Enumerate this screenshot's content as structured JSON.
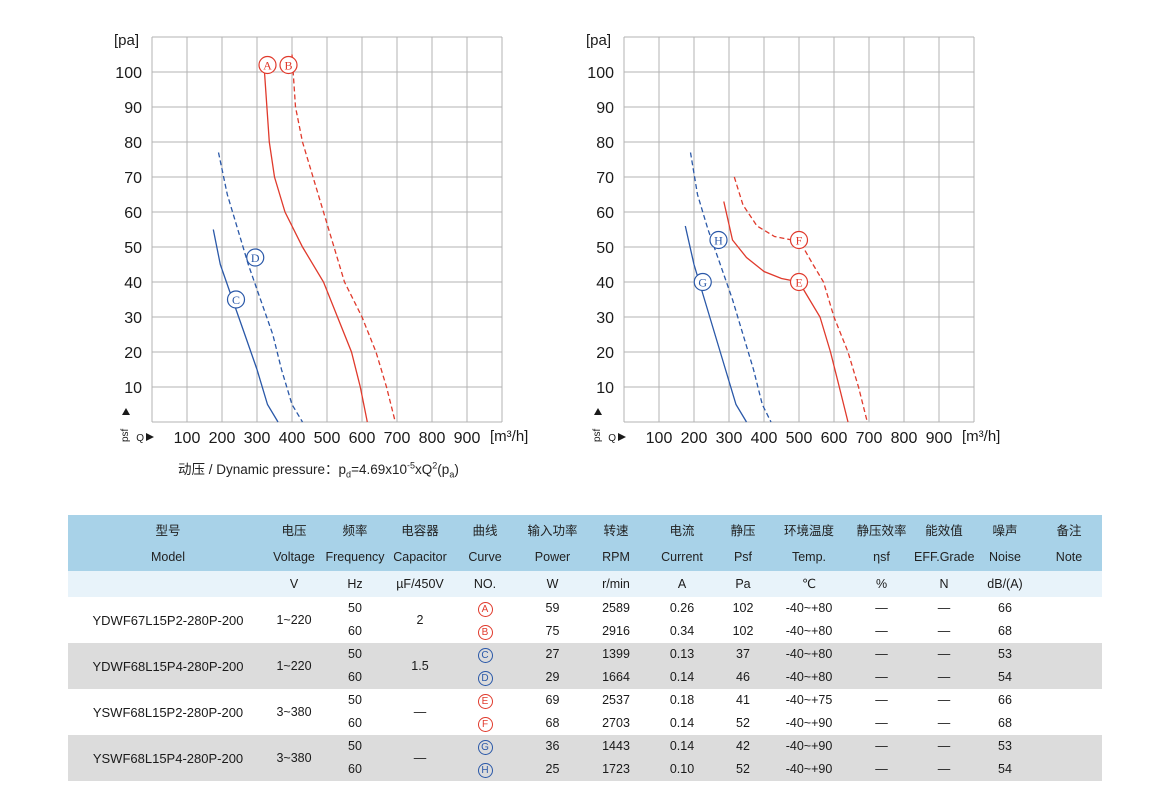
{
  "chart_data": [
    {
      "type": "line",
      "x_ticks": [
        "100",
        "200",
        "300",
        "400",
        "500",
        "600",
        "700",
        "800",
        "900"
      ],
      "y_ticks": [
        "10",
        "20",
        "30",
        "40",
        "50",
        "60",
        "70",
        "80",
        "90",
        "100"
      ],
      "xlabel": "[m³/h]",
      "ylabel": "[pa]",
      "xlim": [
        0,
        1000
      ],
      "ylim": [
        0,
        110
      ],
      "grid": true,
      "series": [
        {
          "name": "A",
          "color": "#e03a2c",
          "dash": false,
          "points": [
            [
              320,
              102
            ],
            [
              335,
              80
            ],
            [
              350,
              70
            ],
            [
              380,
              60
            ],
            [
              430,
              50
            ],
            [
              490,
              40
            ],
            [
              530,
              30
            ],
            [
              570,
              20
            ],
            [
              595,
              10
            ],
            [
              615,
              0
            ]
          ]
        },
        {
          "name": "B",
          "color": "#e03a2c",
          "dash": true,
          "points": [
            [
              400,
              105
            ],
            [
              410,
              90
            ],
            [
              430,
              80
            ],
            [
              460,
              70
            ],
            [
              490,
              60
            ],
            [
              520,
              50
            ],
            [
              550,
              40
            ],
            [
              600,
              30
            ],
            [
              640,
              20
            ],
            [
              670,
              10
            ],
            [
              695,
              0
            ]
          ]
        },
        {
          "name": "C",
          "color": "#2a58a8",
          "dash": false,
          "points": [
            [
              175,
              55
            ],
            [
              195,
              45
            ],
            [
              230,
              35
            ],
            [
              265,
              25
            ],
            [
              300,
              15
            ],
            [
              330,
              5
            ],
            [
              360,
              0
            ]
          ]
        },
        {
          "name": "D",
          "color": "#2a58a8",
          "dash": true,
          "points": [
            [
              190,
              77
            ],
            [
              215,
              65
            ],
            [
              245,
              55
            ],
            [
              275,
              45
            ],
            [
              310,
              35
            ],
            [
              345,
              25
            ],
            [
              370,
              15
            ],
            [
              400,
              5
            ],
            [
              430,
              0
            ]
          ]
        }
      ],
      "labels": [
        {
          "name": "A",
          "x": 330,
          "y": 102
        },
        {
          "name": "B",
          "x": 390,
          "y": 102
        },
        {
          "name": "C",
          "x": 240,
          "y": 35
        },
        {
          "name": "D",
          "x": 295,
          "y": 47
        }
      ]
    },
    {
      "type": "line",
      "x_ticks": [
        "100",
        "200",
        "300",
        "400",
        "500",
        "600",
        "700",
        "800",
        "900"
      ],
      "y_ticks": [
        "10",
        "20",
        "30",
        "40",
        "50",
        "60",
        "70",
        "80",
        "90",
        "100"
      ],
      "xlabel": "[m³/h]",
      "ylabel": "[pa]",
      "xlim": [
        0,
        1000
      ],
      "ylim": [
        0,
        110
      ],
      "grid": true,
      "series": [
        {
          "name": "E",
          "color": "#e03a2c",
          "dash": false,
          "points": [
            [
              285,
              63
            ],
            [
              310,
              52
            ],
            [
              350,
              47
            ],
            [
              400,
              43
            ],
            [
              450,
              41
            ],
            [
              500,
              40
            ],
            [
              560,
              30
            ],
            [
              590,
              20
            ],
            [
              615,
              10
            ],
            [
              640,
              0
            ]
          ]
        },
        {
          "name": "F",
          "color": "#e03a2c",
          "dash": true,
          "points": [
            [
              315,
              70
            ],
            [
              340,
              62
            ],
            [
              380,
              56
            ],
            [
              430,
              53
            ],
            [
              480,
              52
            ],
            [
              500,
              52
            ],
            [
              540,
              45
            ],
            [
              570,
              40
            ],
            [
              600,
              30
            ],
            [
              640,
              20
            ],
            [
              670,
              10
            ],
            [
              695,
              0
            ]
          ]
        },
        {
          "name": "G",
          "color": "#2a58a8",
          "dash": false,
          "points": [
            [
              175,
              56
            ],
            [
              200,
              45
            ],
            [
              230,
              35
            ],
            [
              260,
              25
            ],
            [
              290,
              15
            ],
            [
              320,
              5
            ],
            [
              350,
              0
            ]
          ]
        },
        {
          "name": "H",
          "color": "#2a58a8",
          "dash": true,
          "points": [
            [
              190,
              77
            ],
            [
              210,
              65
            ],
            [
              240,
              55
            ],
            [
              275,
              45
            ],
            [
              310,
              35
            ],
            [
              340,
              25
            ],
            [
              370,
              15
            ],
            [
              395,
              5
            ],
            [
              420,
              0
            ]
          ]
        }
      ],
      "labels": [
        {
          "name": "E",
          "x": 500,
          "y": 40
        },
        {
          "name": "F",
          "x": 500,
          "y": 52
        },
        {
          "name": "G",
          "x": 225,
          "y": 40
        },
        {
          "name": "H",
          "x": 270,
          "y": 52
        }
      ]
    }
  ],
  "charts": {
    "y_unit": "[pa]",
    "psf_label": "psf",
    "q_label": "Q",
    "x_unit": "[m³/h]"
  },
  "formula": {
    "prefix": "动压 / Dynamic pressure：p",
    "sub_d": "d",
    "eq": "=4.69x10",
    "sup": "-5",
    "mid": "xQ",
    "sup2": "2",
    "open": "(p",
    "sub_a": "a",
    "close": ")"
  },
  "table": {
    "headers_cn": [
      "型号",
      "电压",
      "频率",
      "电容器",
      "曲线",
      "输入功率",
      "转速",
      "电流",
      "静压",
      "环境温度",
      "静压效率",
      "能效值",
      "噪声",
      "备注"
    ],
    "headers_en": [
      "Model",
      "Voltage",
      "Frequency",
      "Capacitor",
      "Curve",
      "Power",
      "RPM",
      "Current",
      "Psf",
      "Temp.",
      "ηsf",
      "EFF.Grade",
      "Noise",
      "Note"
    ],
    "units": [
      "",
      "V",
      "Hz",
      "µF/450V",
      "NO.",
      "W",
      "r/min",
      "A",
      "Pa",
      "℃",
      "%",
      "N",
      "dB/(A)",
      ""
    ],
    "groups": [
      {
        "model": "YDWF67L15P2-280P-200",
        "voltage": "1~220",
        "capacitor": "2",
        "rows": [
          {
            "hz": "50",
            "curve": "A",
            "curve_color": "red",
            "power": "59",
            "rpm": "2589",
            "current": "0.26",
            "psf": "102",
            "temp": "-40~+80",
            "eff": "—",
            "grade": "—",
            "noise": "66"
          },
          {
            "hz": "60",
            "curve": "B",
            "curve_color": "red",
            "power": "75",
            "rpm": "2916",
            "current": "0.34",
            "psf": "102",
            "temp": "-40~+80",
            "eff": "—",
            "grade": "—",
            "noise": "68"
          }
        ]
      },
      {
        "model": "YDWF68L15P4-280P-200",
        "voltage": "1~220",
        "capacitor": "1.5",
        "rows": [
          {
            "hz": "50",
            "curve": "C",
            "curve_color": "blue",
            "power": "27",
            "rpm": "1399",
            "current": "0.13",
            "psf": "37",
            "temp": "-40~+80",
            "eff": "—",
            "grade": "—",
            "noise": "53"
          },
          {
            "hz": "60",
            "curve": "D",
            "curve_color": "blue",
            "power": "29",
            "rpm": "1664",
            "current": "0.14",
            "psf": "46",
            "temp": "-40~+80",
            "eff": "—",
            "grade": "—",
            "noise": "54"
          }
        ]
      },
      {
        "model": "YSWF68L15P2-280P-200",
        "voltage": "3~380",
        "capacitor": "—",
        "rows": [
          {
            "hz": "50",
            "curve": "E",
            "curve_color": "red",
            "power": "69",
            "rpm": "2537",
            "current": "0.18",
            "psf": "41",
            "temp": "-40~+75",
            "eff": "—",
            "grade": "—",
            "noise": "66"
          },
          {
            "hz": "60",
            "curve": "F",
            "curve_color": "red",
            "power": "68",
            "rpm": "2703",
            "current": "0.14",
            "psf": "52",
            "temp": "-40~+90",
            "eff": "—",
            "grade": "—",
            "noise": "68"
          }
        ]
      },
      {
        "model": "YSWF68L15P4-280P-200",
        "voltage": "3~380",
        "capacitor": "—",
        "rows": [
          {
            "hz": "50",
            "curve": "G",
            "curve_color": "blue",
            "power": "36",
            "rpm": "1443",
            "current": "0.14",
            "psf": "42",
            "temp": "-40~+90",
            "eff": "—",
            "grade": "—",
            "noise": "53"
          },
          {
            "hz": "60",
            "curve": "H",
            "curve_color": "blue",
            "power": "25",
            "rpm": "1723",
            "current": "0.10",
            "psf": "52",
            "temp": "-40~+90",
            "eff": "—",
            "grade": "—",
            "noise": "54"
          }
        ]
      }
    ]
  }
}
